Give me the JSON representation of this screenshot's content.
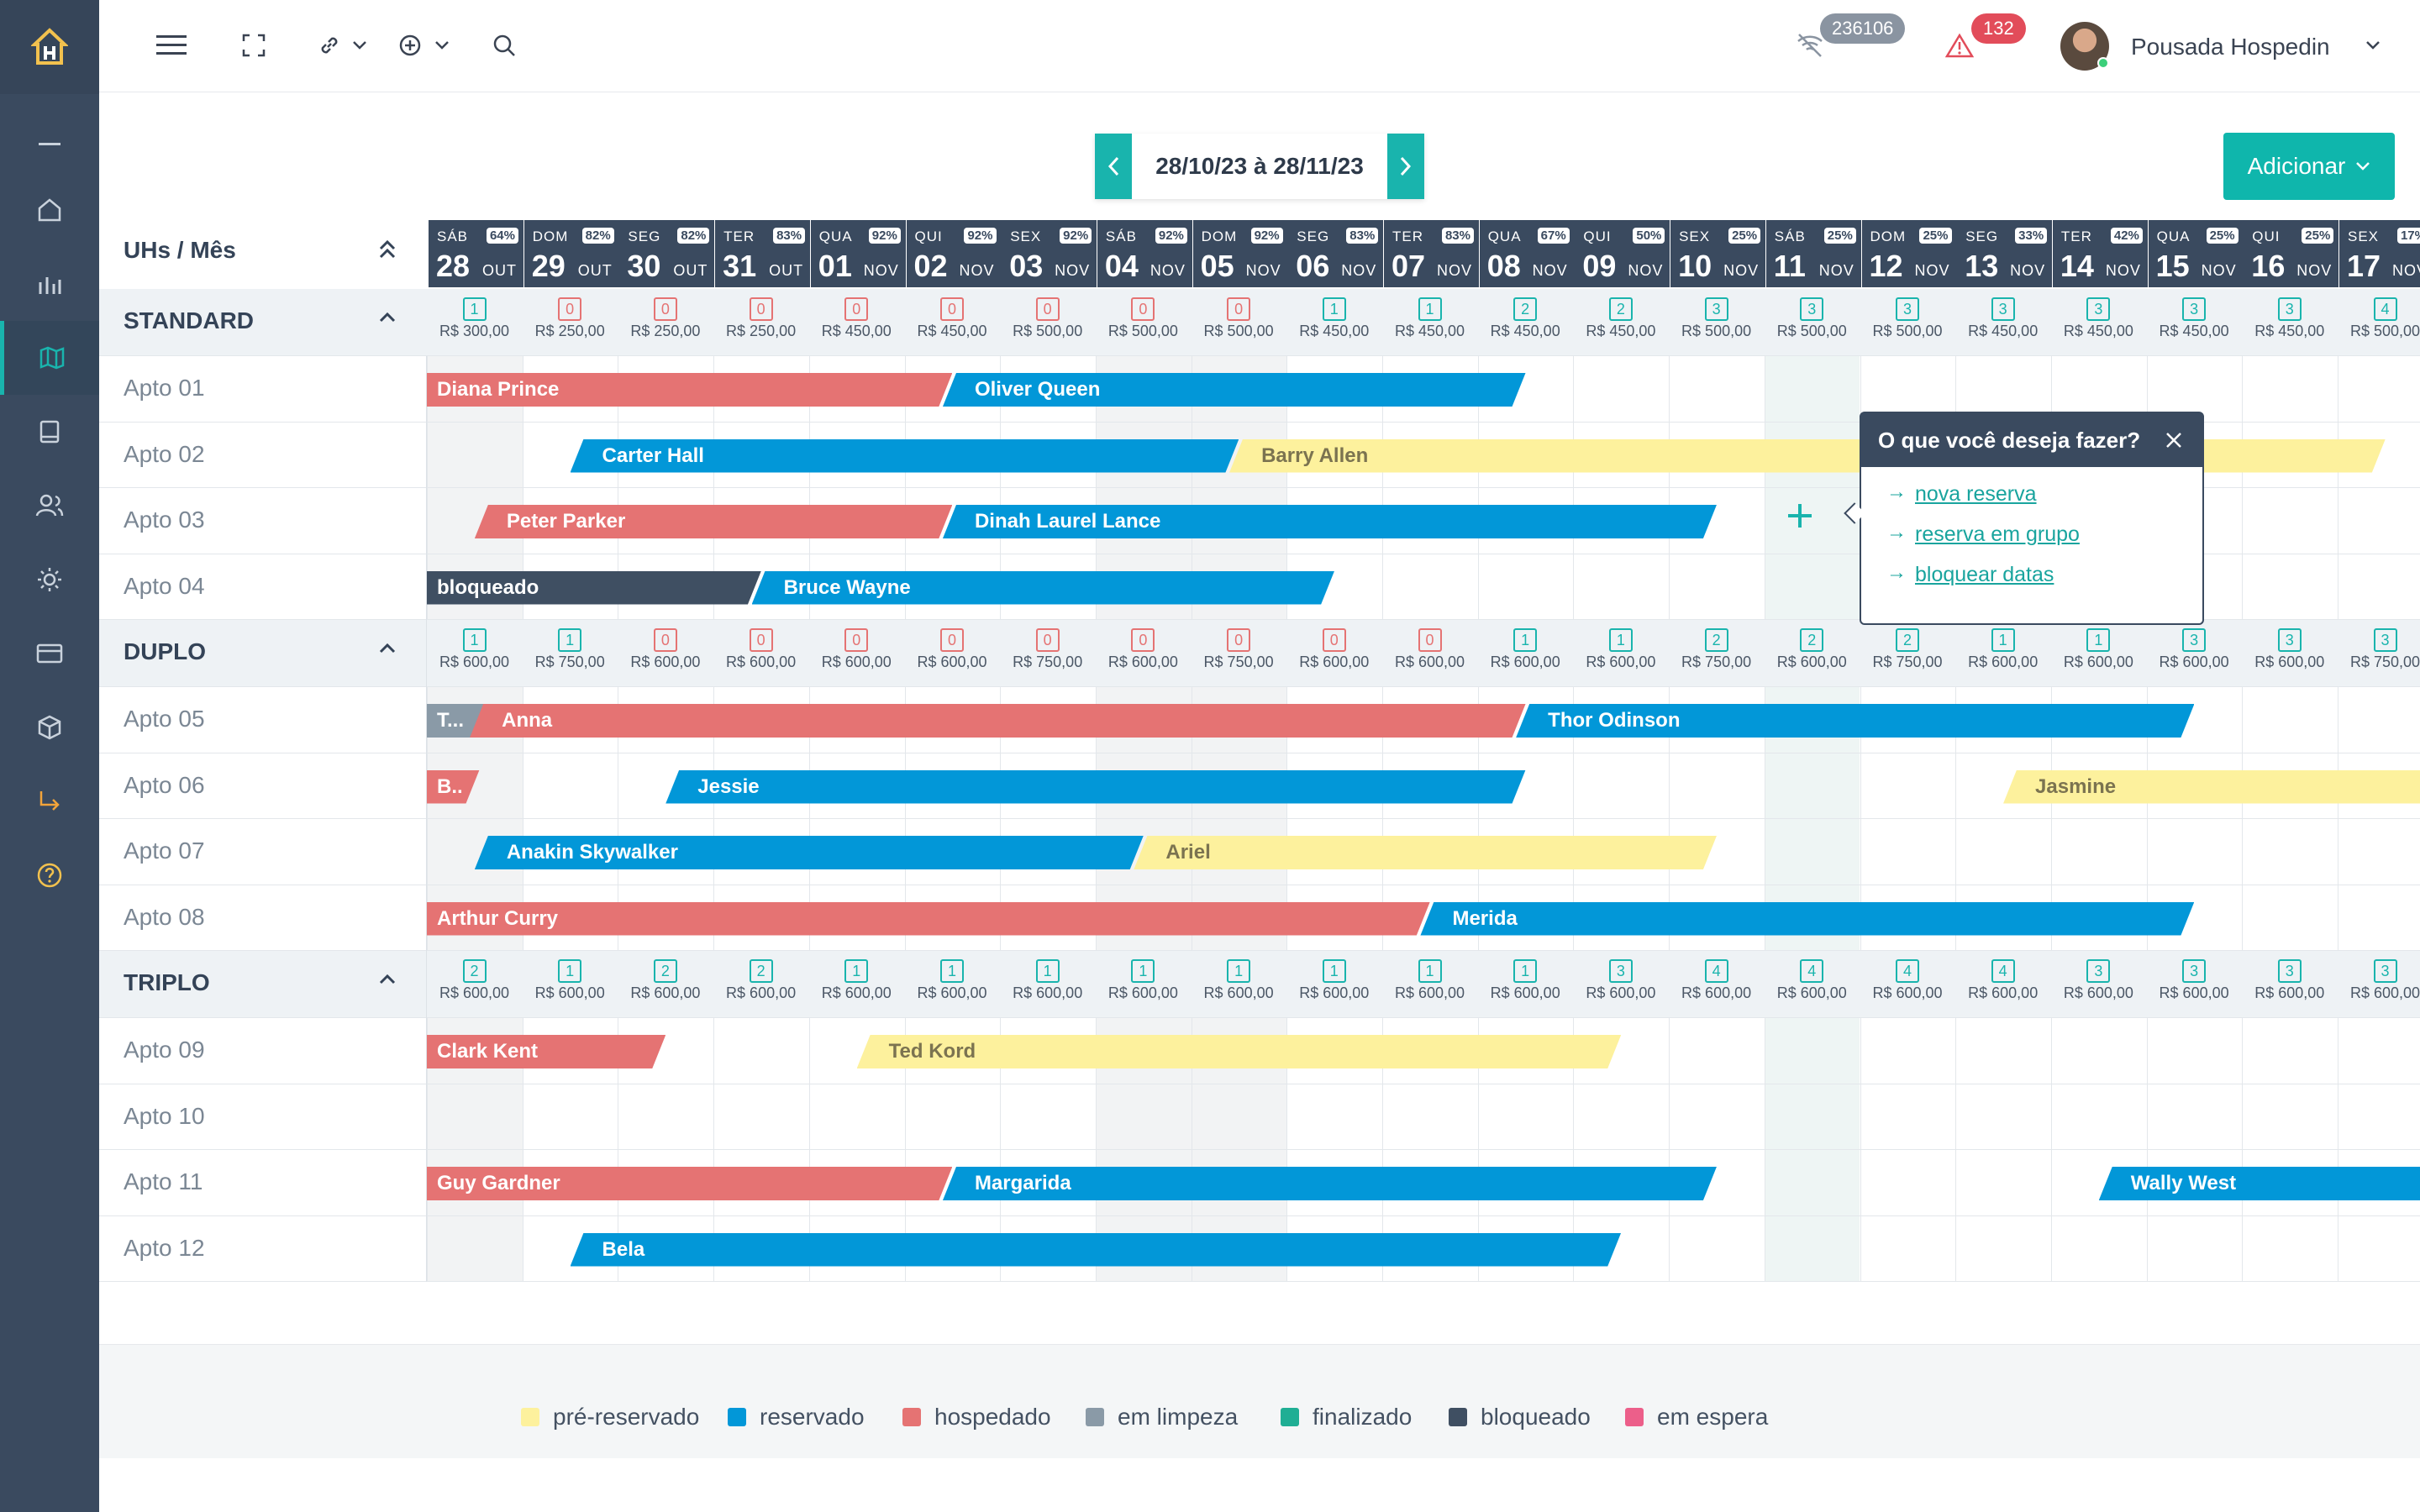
{
  "topbar": {
    "notif_count": "236106",
    "alert_count": "132",
    "user_name": "Pousada Hospedin"
  },
  "toolbar": {
    "date_range": "28/10/23 à 28/11/23",
    "add_label": "Adicionar"
  },
  "grid": {
    "header_label": "UHs / Mês",
    "days": [
      {
        "wd": "SÁB",
        "num": "28",
        "mon": "OUT",
        "pct": "64%"
      },
      {
        "wd": "DOM",
        "num": "29",
        "mon": "OUT",
        "pct": "82%"
      },
      {
        "wd": "SEG",
        "num": "30",
        "mon": "OUT",
        "pct": "82%"
      },
      {
        "wd": "TER",
        "num": "31",
        "mon": "OUT",
        "pct": "83%"
      },
      {
        "wd": "QUA",
        "num": "01",
        "mon": "NOV",
        "pct": "92%"
      },
      {
        "wd": "QUI",
        "num": "02",
        "mon": "NOV",
        "pct": "92%"
      },
      {
        "wd": "SEX",
        "num": "03",
        "mon": "NOV",
        "pct": "92%"
      },
      {
        "wd": "SÁB",
        "num": "04",
        "mon": "NOV",
        "pct": "92%"
      },
      {
        "wd": "DOM",
        "num": "05",
        "mon": "NOV",
        "pct": "92%"
      },
      {
        "wd": "SEG",
        "num": "06",
        "mon": "NOV",
        "pct": "83%"
      },
      {
        "wd": "TER",
        "num": "07",
        "mon": "NOV",
        "pct": "83%"
      },
      {
        "wd": "QUA",
        "num": "08",
        "mon": "NOV",
        "pct": "67%"
      },
      {
        "wd": "QUI",
        "num": "09",
        "mon": "NOV",
        "pct": "50%"
      },
      {
        "wd": "SEX",
        "num": "10",
        "mon": "NOV",
        "pct": "25%"
      },
      {
        "wd": "SÁB",
        "num": "11",
        "mon": "NOV",
        "pct": "25%"
      },
      {
        "wd": "DOM",
        "num": "12",
        "mon": "NOV",
        "pct": "25%"
      },
      {
        "wd": "SEG",
        "num": "13",
        "mon": "NOV",
        "pct": "33%"
      },
      {
        "wd": "TER",
        "num": "14",
        "mon": "NOV",
        "pct": "42%"
      },
      {
        "wd": "QUA",
        "num": "15",
        "mon": "NOV",
        "pct": "25%"
      },
      {
        "wd": "QUI",
        "num": "16",
        "mon": "NOV",
        "pct": "25%"
      },
      {
        "wd": "SEX",
        "num": "17",
        "mon": "NOV",
        "pct": "17%"
      }
    ],
    "categories": [
      {
        "name": "STANDARD",
        "avail": [
          "1",
          "0",
          "0",
          "0",
          "0",
          "0",
          "0",
          "0",
          "0",
          "1",
          "1",
          "2",
          "2",
          "3",
          "3",
          "3",
          "3",
          "3",
          "3",
          "3",
          "4"
        ],
        "prices": [
          "R$ 300,00",
          "R$ 250,00",
          "R$ 250,00",
          "R$ 250,00",
          "R$ 450,00",
          "R$ 450,00",
          "R$ 500,00",
          "R$ 500,00",
          "R$ 500,00",
          "R$ 450,00",
          "R$ 450,00",
          "R$ 450,00",
          "R$ 450,00",
          "R$ 500,00",
          "R$ 500,00",
          "R$ 500,00",
          "R$ 450,00",
          "R$ 450,00",
          "R$ 450,00",
          "R$ 450,00",
          "R$ 500,00"
        ],
        "units": [
          {
            "name": "Apto 01",
            "bars": [
              {
                "label": "Diana Prince",
                "type": "hos",
                "s": 0,
                "e": 5.5,
                "start": true
              },
              {
                "label": "Oliver Queen",
                "type": "res",
                "s": 5.4,
                "e": 11.5
              }
            ]
          },
          {
            "name": "Apto 02",
            "bars": [
              {
                "label": "Carter Hall",
                "type": "res",
                "s": 1.5,
                "e": 8.5
              },
              {
                "label": "Barry Allen",
                "type": "pre",
                "s": 8.4,
                "e": 20.5
              }
            ]
          },
          {
            "name": "Apto 03",
            "bars": [
              {
                "label": "Peter Parker",
                "type": "hos",
                "s": 0.5,
                "e": 5.5
              },
              {
                "label": "Dinah Laurel Lance",
                "type": "res",
                "s": 5.4,
                "e": 13.5
              }
            ]
          },
          {
            "name": "Apto 04",
            "bars": [
              {
                "label": "bloqueado",
                "type": "blk",
                "s": 0,
                "e": 3.5,
                "start": true
              },
              {
                "label": "Bruce Wayne",
                "type": "res",
                "s": 3.4,
                "e": 9.5
              }
            ]
          }
        ]
      },
      {
        "name": "DUPLO",
        "avail": [
          "1",
          "1",
          "0",
          "0",
          "0",
          "0",
          "0",
          "0",
          "0",
          "0",
          "0",
          "1",
          "1",
          "2",
          "2",
          "2",
          "1",
          "1",
          "3",
          "3",
          "3"
        ],
        "prices": [
          "R$ 600,00",
          "R$ 750,00",
          "R$ 600,00",
          "R$ 600,00",
          "R$ 600,00",
          "R$ 600,00",
          "R$ 750,00",
          "R$ 600,00",
          "R$ 750,00",
          "R$ 600,00",
          "R$ 600,00",
          "R$ 600,00",
          "R$ 600,00",
          "R$ 750,00",
          "R$ 600,00",
          "R$ 750,00",
          "R$ 600,00",
          "R$ 600,00",
          "R$ 600,00",
          "R$ 600,00",
          "R$ 750,00"
        ],
        "units": [
          {
            "name": "Apto 05",
            "bars": [
              {
                "label": "T...",
                "type": "cln",
                "s": 0,
                "e": 0.6,
                "start": true
              },
              {
                "label": "Anna",
                "type": "hos",
                "s": 0.45,
                "e": 11.5
              },
              {
                "label": "Thor Odinson",
                "type": "res",
                "s": 11.4,
                "e": 18.5
              }
            ]
          },
          {
            "name": "Apto 06",
            "bars": [
              {
                "label": "B..",
                "type": "hos",
                "s": 0,
                "e": 0.55,
                "start": true
              },
              {
                "label": "Jessie",
                "type": "res",
                "s": 2.5,
                "e": 11.5
              },
              {
                "label": "Jasmine",
                "type": "pre",
                "s": 16.5,
                "e": 21.5
              }
            ]
          },
          {
            "name": "Apto 07",
            "bars": [
              {
                "label": "Anakin Skywalker",
                "type": "res",
                "s": 0.5,
                "e": 7.5
              },
              {
                "label": "Ariel",
                "type": "pre",
                "s": 7.4,
                "e": 13.5
              }
            ]
          },
          {
            "name": "Apto 08",
            "bars": [
              {
                "label": "Arthur Curry",
                "type": "hos",
                "s": 0,
                "e": 10.5,
                "start": true
              },
              {
                "label": "Merida",
                "type": "res",
                "s": 10.4,
                "e": 18.5
              }
            ]
          }
        ]
      },
      {
        "name": "TRIPLO",
        "avail": [
          "2",
          "1",
          "2",
          "2",
          "1",
          "1",
          "1",
          "1",
          "1",
          "1",
          "1",
          "1",
          "3",
          "4",
          "4",
          "4",
          "4",
          "3",
          "3",
          "3",
          "3"
        ],
        "prices": [
          "R$ 600,00",
          "R$ 600,00",
          "R$ 600,00",
          "R$ 600,00",
          "R$ 600,00",
          "R$ 600,00",
          "R$ 600,00",
          "R$ 600,00",
          "R$ 600,00",
          "R$ 600,00",
          "R$ 600,00",
          "R$ 600,00",
          "R$ 600,00",
          "R$ 600,00",
          "R$ 600,00",
          "R$ 600,00",
          "R$ 600,00",
          "R$ 600,00",
          "R$ 600,00",
          "R$ 600,00",
          "R$ 600,00"
        ],
        "units": [
          {
            "name": "Apto 09",
            "bars": [
              {
                "label": "Clark Kent",
                "type": "hos",
                "s": 0,
                "e": 2.5,
                "start": true
              },
              {
                "label": "Ted Kord",
                "type": "pre",
                "s": 4.5,
                "e": 12.5
              }
            ]
          },
          {
            "name": "Apto 10",
            "bars": []
          },
          {
            "name": "Apto 11",
            "bars": [
              {
                "label": "Guy Gardner",
                "type": "hos",
                "s": 0,
                "e": 5.5,
                "start": true
              },
              {
                "label": "Margarida",
                "type": "res",
                "s": 5.4,
                "e": 13.5
              },
              {
                "label": "Wally West",
                "type": "res",
                "s": 17.5,
                "e": 21.5
              }
            ]
          },
          {
            "name": "Apto 12",
            "bars": [
              {
                "label": "Bela",
                "type": "res",
                "s": 1.5,
                "e": 12.5
              }
            ]
          }
        ]
      }
    ]
  },
  "popup": {
    "title": "O que você deseja fazer?",
    "links": [
      "nova reserva",
      "reserva em grupo",
      "bloquear datas"
    ]
  },
  "legend": [
    {
      "label": "pré-reservado",
      "color": "#fdf19d"
    },
    {
      "label": "reservado",
      "color": "#0297d8"
    },
    {
      "label": "hospedado",
      "color": "#e57373"
    },
    {
      "label": "em limpeza",
      "color": "#8a9aa7"
    },
    {
      "label": "finalizado",
      "color": "#1fae94"
    },
    {
      "label": "bloqueado",
      "color": "#3f4f62"
    },
    {
      "label": "em espera",
      "color": "#ec5f8a"
    }
  ]
}
